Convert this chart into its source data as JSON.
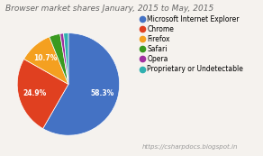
{
  "title": "Browser market shares January, 2015 to May, 2015",
  "labels": [
    "Microsoft Internet Explorer",
    "Chrome",
    "Firefox",
    "Safari",
    "Opera",
    "Proprietary or Undetectable"
  ],
  "values": [
    58.3,
    24.9,
    10.7,
    3.5,
    1.1,
    1.5
  ],
  "colors": [
    "#4472C4",
    "#E04020",
    "#F4A020",
    "#3A9A20",
    "#A030A0",
    "#30B0B0"
  ],
  "background_color": "#f5f2ee",
  "url_text": "https://csharpdocs.blogspot.in",
  "title_fontsize": 6.5,
  "legend_fontsize": 5.5,
  "url_fontsize": 5.0
}
